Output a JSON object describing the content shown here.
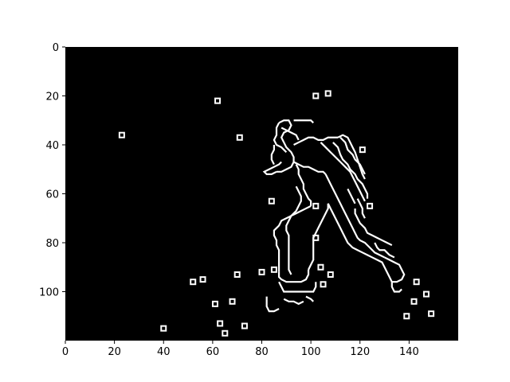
{
  "figure": {
    "background": "#ffffff",
    "image_background": "#000000",
    "edge_color": "#ffffff",
    "x_axis": {
      "range": [
        0,
        160
      ],
      "ticks": [
        "0",
        "20",
        "40",
        "60",
        "80",
        "100",
        "120",
        "140"
      ]
    },
    "y_axis": {
      "range": [
        0,
        120
      ],
      "inverted": true,
      "ticks": [
        "0",
        "20",
        "40",
        "60",
        "80",
        "100"
      ]
    }
  },
  "image_content": {
    "description_free": true,
    "marker_points": [
      [
        62,
        22
      ],
      [
        102,
        20
      ],
      [
        107,
        19
      ],
      [
        23,
        36
      ],
      [
        71,
        37
      ],
      [
        121,
        42
      ],
      [
        84,
        63
      ],
      [
        102,
        65
      ],
      [
        124,
        65
      ],
      [
        102,
        78
      ],
      [
        104,
        90
      ],
      [
        85,
        91
      ],
      [
        80,
        92
      ],
      [
        70,
        93
      ],
      [
        108,
        93
      ],
      [
        52,
        96
      ],
      [
        56,
        95
      ],
      [
        105,
        97
      ],
      [
        143,
        96
      ],
      [
        147,
        101
      ],
      [
        61,
        105
      ],
      [
        68,
        104
      ],
      [
        142,
        104
      ],
      [
        149,
        109
      ],
      [
        139,
        110
      ],
      [
        63,
        113
      ],
      [
        73,
        114
      ],
      [
        40,
        115
      ],
      [
        65,
        117
      ]
    ],
    "outline_strokes": [
      [
        [
          87,
          31
        ],
        [
          89,
          30
        ],
        [
          91,
          30
        ],
        [
          92,
          32
        ],
        [
          91,
          34
        ],
        [
          89,
          35
        ],
        [
          88,
          37
        ],
        [
          89,
          39
        ]
      ],
      [
        [
          87,
          31
        ],
        [
          86,
          33
        ],
        [
          86,
          36
        ],
        [
          85,
          38
        ],
        [
          86,
          40
        ],
        [
          88,
          41
        ],
        [
          90,
          43
        ]
      ],
      [
        [
          93,
          30
        ],
        [
          96,
          30
        ],
        [
          98,
          30
        ],
        [
          100,
          30
        ],
        [
          101,
          31
        ]
      ],
      [
        [
          89,
          39
        ],
        [
          90,
          41
        ],
        [
          92,
          43
        ],
        [
          93,
          45
        ],
        [
          93,
          47
        ],
        [
          92,
          49
        ],
        [
          90,
          50
        ],
        [
          88,
          51
        ],
        [
          86,
          51
        ]
      ],
      [
        [
          86,
          51
        ],
        [
          84,
          52
        ],
        [
          82,
          52
        ],
        [
          81,
          51
        ],
        [
          83,
          50
        ],
        [
          85,
          49
        ],
        [
          87,
          48
        ],
        [
          88,
          47
        ]
      ],
      [
        [
          93,
          40
        ],
        [
          95,
          39
        ],
        [
          97,
          38
        ],
        [
          99,
          37
        ],
        [
          101,
          37
        ],
        [
          103,
          38
        ],
        [
          105,
          38
        ],
        [
          107,
          37
        ],
        [
          109,
          37
        ],
        [
          111,
          37
        ]
      ],
      [
        [
          111,
          37
        ],
        [
          113,
          36
        ],
        [
          115,
          37
        ],
        [
          116,
          39
        ],
        [
          117,
          41
        ],
        [
          118,
          43
        ],
        [
          119,
          46
        ],
        [
          120,
          49
        ],
        [
          121,
          52
        ],
        [
          122,
          54
        ]
      ],
      [
        [
          93,
          47
        ],
        [
          95,
          48
        ],
        [
          97,
          49
        ],
        [
          99,
          49
        ],
        [
          101,
          50
        ],
        [
          103,
          51
        ],
        [
          105,
          51
        ],
        [
          106,
          52
        ]
      ],
      [
        [
          94,
          48
        ],
        [
          95,
          50
        ],
        [
          95,
          52
        ],
        [
          96,
          54
        ],
        [
          97,
          56
        ],
        [
          97,
          58
        ],
        [
          98,
          60
        ],
        [
          99,
          62
        ],
        [
          100,
          63
        ],
        [
          100,
          65
        ]
      ],
      [
        [
          100,
          65
        ],
        [
          98,
          66
        ],
        [
          96,
          67
        ],
        [
          94,
          68
        ],
        [
          92,
          69
        ],
        [
          91,
          71
        ],
        [
          90,
          73
        ],
        [
          90,
          75
        ],
        [
          91,
          77
        ],
        [
          91,
          79
        ],
        [
          91,
          82
        ],
        [
          91,
          85
        ],
        [
          91,
          88
        ],
        [
          91,
          91
        ],
        [
          92,
          93
        ]
      ],
      [
        [
          94,
          57
        ],
        [
          95,
          59
        ],
        [
          96,
          61
        ],
        [
          96,
          63
        ],
        [
          95,
          65
        ],
        [
          94,
          67
        ],
        [
          92,
          69
        ],
        [
          90,
          70
        ],
        [
          88,
          71
        ],
        [
          87,
          73
        ],
        [
          86,
          74
        ],
        [
          85,
          75
        ],
        [
          85,
          77
        ],
        [
          86,
          79
        ],
        [
          86,
          81
        ],
        [
          87,
          83
        ],
        [
          87,
          86
        ],
        [
          87,
          89
        ],
        [
          87,
          92
        ]
      ],
      [
        [
          87,
          92
        ],
        [
          87,
          94
        ],
        [
          88,
          95
        ],
        [
          90,
          96
        ],
        [
          92,
          96
        ],
        [
          94,
          96
        ],
        [
          96,
          96
        ],
        [
          98,
          95
        ],
        [
          99,
          93
        ],
        [
          99,
          91
        ]
      ],
      [
        [
          87,
          96
        ],
        [
          88,
          98
        ],
        [
          89,
          100
        ],
        [
          91,
          100
        ],
        [
          93,
          100
        ],
        [
          95,
          100
        ],
        [
          97,
          100
        ],
        [
          99,
          100
        ],
        [
          101,
          100
        ],
        [
          102,
          98
        ],
        [
          102,
          96
        ]
      ],
      [
        [
          99,
          91
        ],
        [
          100,
          89
        ],
        [
          101,
          87
        ],
        [
          101,
          84
        ],
        [
          101,
          81
        ],
        [
          101,
          78
        ],
        [
          102,
          76
        ],
        [
          103,
          74
        ],
        [
          104,
          72
        ],
        [
          105,
          70
        ],
        [
          106,
          68
        ],
        [
          107,
          66
        ],
        [
          107,
          64
        ]
      ],
      [
        [
          106,
          52
        ],
        [
          107,
          54
        ],
        [
          108,
          56
        ],
        [
          109,
          58
        ],
        [
          110,
          60
        ],
        [
          111,
          62
        ],
        [
          112,
          64
        ],
        [
          113,
          66
        ],
        [
          114,
          68
        ],
        [
          115,
          70
        ],
        [
          116,
          72
        ],
        [
          117,
          74
        ],
        [
          118,
          76
        ],
        [
          119,
          78
        ],
        [
          120,
          79
        ],
        [
          122,
          80
        ],
        [
          124,
          82
        ],
        [
          126,
          84
        ],
        [
          128,
          85
        ],
        [
          130,
          86
        ]
      ],
      [
        [
          107,
          64
        ],
        [
          108,
          66
        ],
        [
          109,
          68
        ],
        [
          110,
          70
        ],
        [
          111,
          72
        ],
        [
          112,
          74
        ],
        [
          113,
          76
        ],
        [
          114,
          78
        ],
        [
          115,
          80
        ],
        [
          117,
          82
        ],
        [
          119,
          83
        ],
        [
          121,
          84
        ],
        [
          123,
          85
        ],
        [
          125,
          86
        ],
        [
          127,
          87
        ],
        [
          129,
          88
        ],
        [
          130,
          90
        ],
        [
          131,
          92
        ],
        [
          132,
          94
        ],
        [
          133,
          96
        ]
      ],
      [
        [
          130,
          86
        ],
        [
          132,
          87
        ],
        [
          134,
          88
        ],
        [
          136,
          89
        ],
        [
          137,
          91
        ],
        [
          138,
          93
        ],
        [
          137,
          95
        ],
        [
          135,
          96
        ],
        [
          133,
          96
        ]
      ],
      [
        [
          104,
          39
        ],
        [
          106,
          41
        ],
        [
          108,
          43
        ],
        [
          110,
          45
        ],
        [
          112,
          47
        ],
        [
          114,
          49
        ],
        [
          116,
          51
        ],
        [
          117,
          53
        ],
        [
          118,
          55
        ],
        [
          119,
          57
        ],
        [
          120,
          59
        ],
        [
          121,
          61
        ],
        [
          122,
          63
        ]
      ],
      [
        [
          109,
          39
        ],
        [
          111,
          41
        ],
        [
          112,
          44
        ],
        [
          113,
          46
        ],
        [
          115,
          48
        ],
        [
          116,
          50
        ],
        [
          118,
          52
        ],
        [
          119,
          54
        ],
        [
          121,
          56
        ],
        [
          122,
          58
        ],
        [
          123,
          60
        ],
        [
          123,
          62
        ]
      ],
      [
        [
          112,
          37
        ],
        [
          114,
          39
        ],
        [
          115,
          42
        ],
        [
          117,
          44
        ],
        [
          118,
          46
        ],
        [
          120,
          48
        ],
        [
          121,
          50
        ],
        [
          122,
          52
        ]
      ],
      [
        [
          85,
          40
        ],
        [
          85,
          42
        ],
        [
          84,
          44
        ],
        [
          84,
          46
        ],
        [
          85,
          48
        ]
      ],
      [
        [
          88,
          33
        ],
        [
          90,
          34
        ],
        [
          92,
          35
        ],
        [
          94,
          36
        ],
        [
          95,
          38
        ]
      ],
      [
        [
          82,
          102
        ],
        [
          82,
          104
        ],
        [
          82,
          106
        ],
        [
          83,
          108
        ],
        [
          85,
          108
        ],
        [
          87,
          107
        ]
      ],
      [
        [
          89,
          103
        ],
        [
          91,
          104
        ],
        [
          93,
          104
        ],
        [
          95,
          105
        ],
        [
          97,
          104
        ]
      ],
      [
        [
          98,
          102
        ],
        [
          100,
          103
        ],
        [
          101,
          104
        ]
      ],
      [
        [
          118,
          66
        ],
        [
          118,
          68
        ],
        [
          119,
          70
        ],
        [
          120,
          72
        ],
        [
          122,
          74
        ],
        [
          123,
          76
        ],
        [
          125,
          77
        ],
        [
          127,
          78
        ],
        [
          129,
          79
        ],
        [
          131,
          80
        ],
        [
          133,
          81
        ]
      ],
      [
        [
          115,
          58
        ],
        [
          116,
          60
        ],
        [
          117,
          62
        ],
        [
          118,
          64
        ]
      ],
      [
        [
          126,
          80
        ],
        [
          127,
          82
        ],
        [
          128,
          83
        ],
        [
          130,
          83
        ],
        [
          131,
          84
        ],
        [
          132,
          85
        ],
        [
          134,
          86
        ]
      ],
      [
        [
          133,
          96
        ],
        [
          133,
          98
        ],
        [
          134,
          100
        ],
        [
          136,
          100
        ],
        [
          137,
          99
        ]
      ],
      [
        [
          119,
          62
        ],
        [
          120,
          64
        ],
        [
          121,
          66
        ],
        [
          121,
          68
        ],
        [
          122,
          70
        ]
      ]
    ]
  }
}
